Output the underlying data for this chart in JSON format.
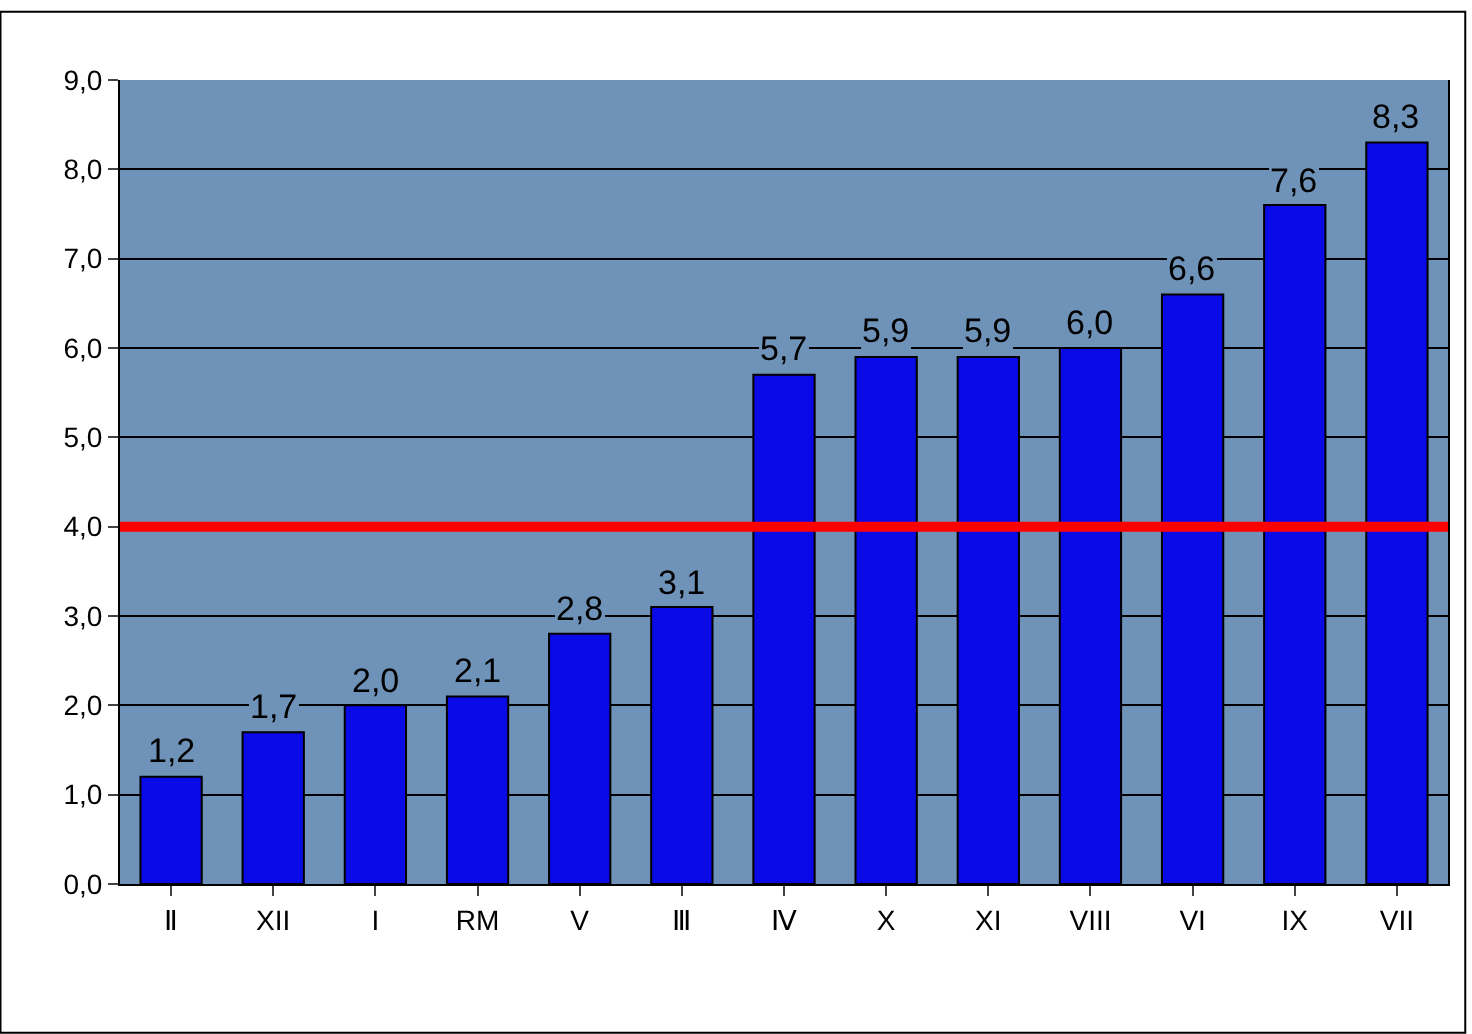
{
  "chart_data": {
    "type": "bar",
    "categories": [
      "Ⅱ",
      "XII",
      "I",
      "RM",
      "V",
      "Ⅲ",
      "Ⅳ",
      "X",
      "XI",
      "VIII",
      "VI",
      "IX",
      "VII"
    ],
    "values": [
      1.2,
      1.7,
      2.0,
      2.1,
      2.8,
      3.1,
      5.7,
      5.9,
      5.9,
      6.0,
      6.6,
      7.6,
      8.3
    ],
    "value_labels": [
      "1,2",
      "1,7",
      "2,0",
      "2,1",
      "2,8",
      "3,1",
      "5,7",
      "5,9",
      "5,9",
      "6,0",
      "6,6",
      "7,6",
      "8,3"
    ],
    "color": "#0a0ae6",
    "ylim": [
      0,
      9
    ],
    "yticks": [
      {
        "value": 0,
        "label": "0,0"
      },
      {
        "value": 1,
        "label": "1,0"
      },
      {
        "value": 2,
        "label": "2,0"
      },
      {
        "value": 3,
        "label": "3,0"
      },
      {
        "value": 4,
        "label": "4,0"
      },
      {
        "value": 5,
        "label": "5,0"
      },
      {
        "value": 6,
        "label": "6,0"
      },
      {
        "value": 7,
        "label": "7,0"
      },
      {
        "value": 8,
        "label": "8,0"
      },
      {
        "value": 9,
        "label": "9,0"
      }
    ],
    "ref_lines": [
      {
        "axis": "y",
        "value": 4.0,
        "color": "#ff0000"
      }
    ],
    "grid": "y"
  }
}
